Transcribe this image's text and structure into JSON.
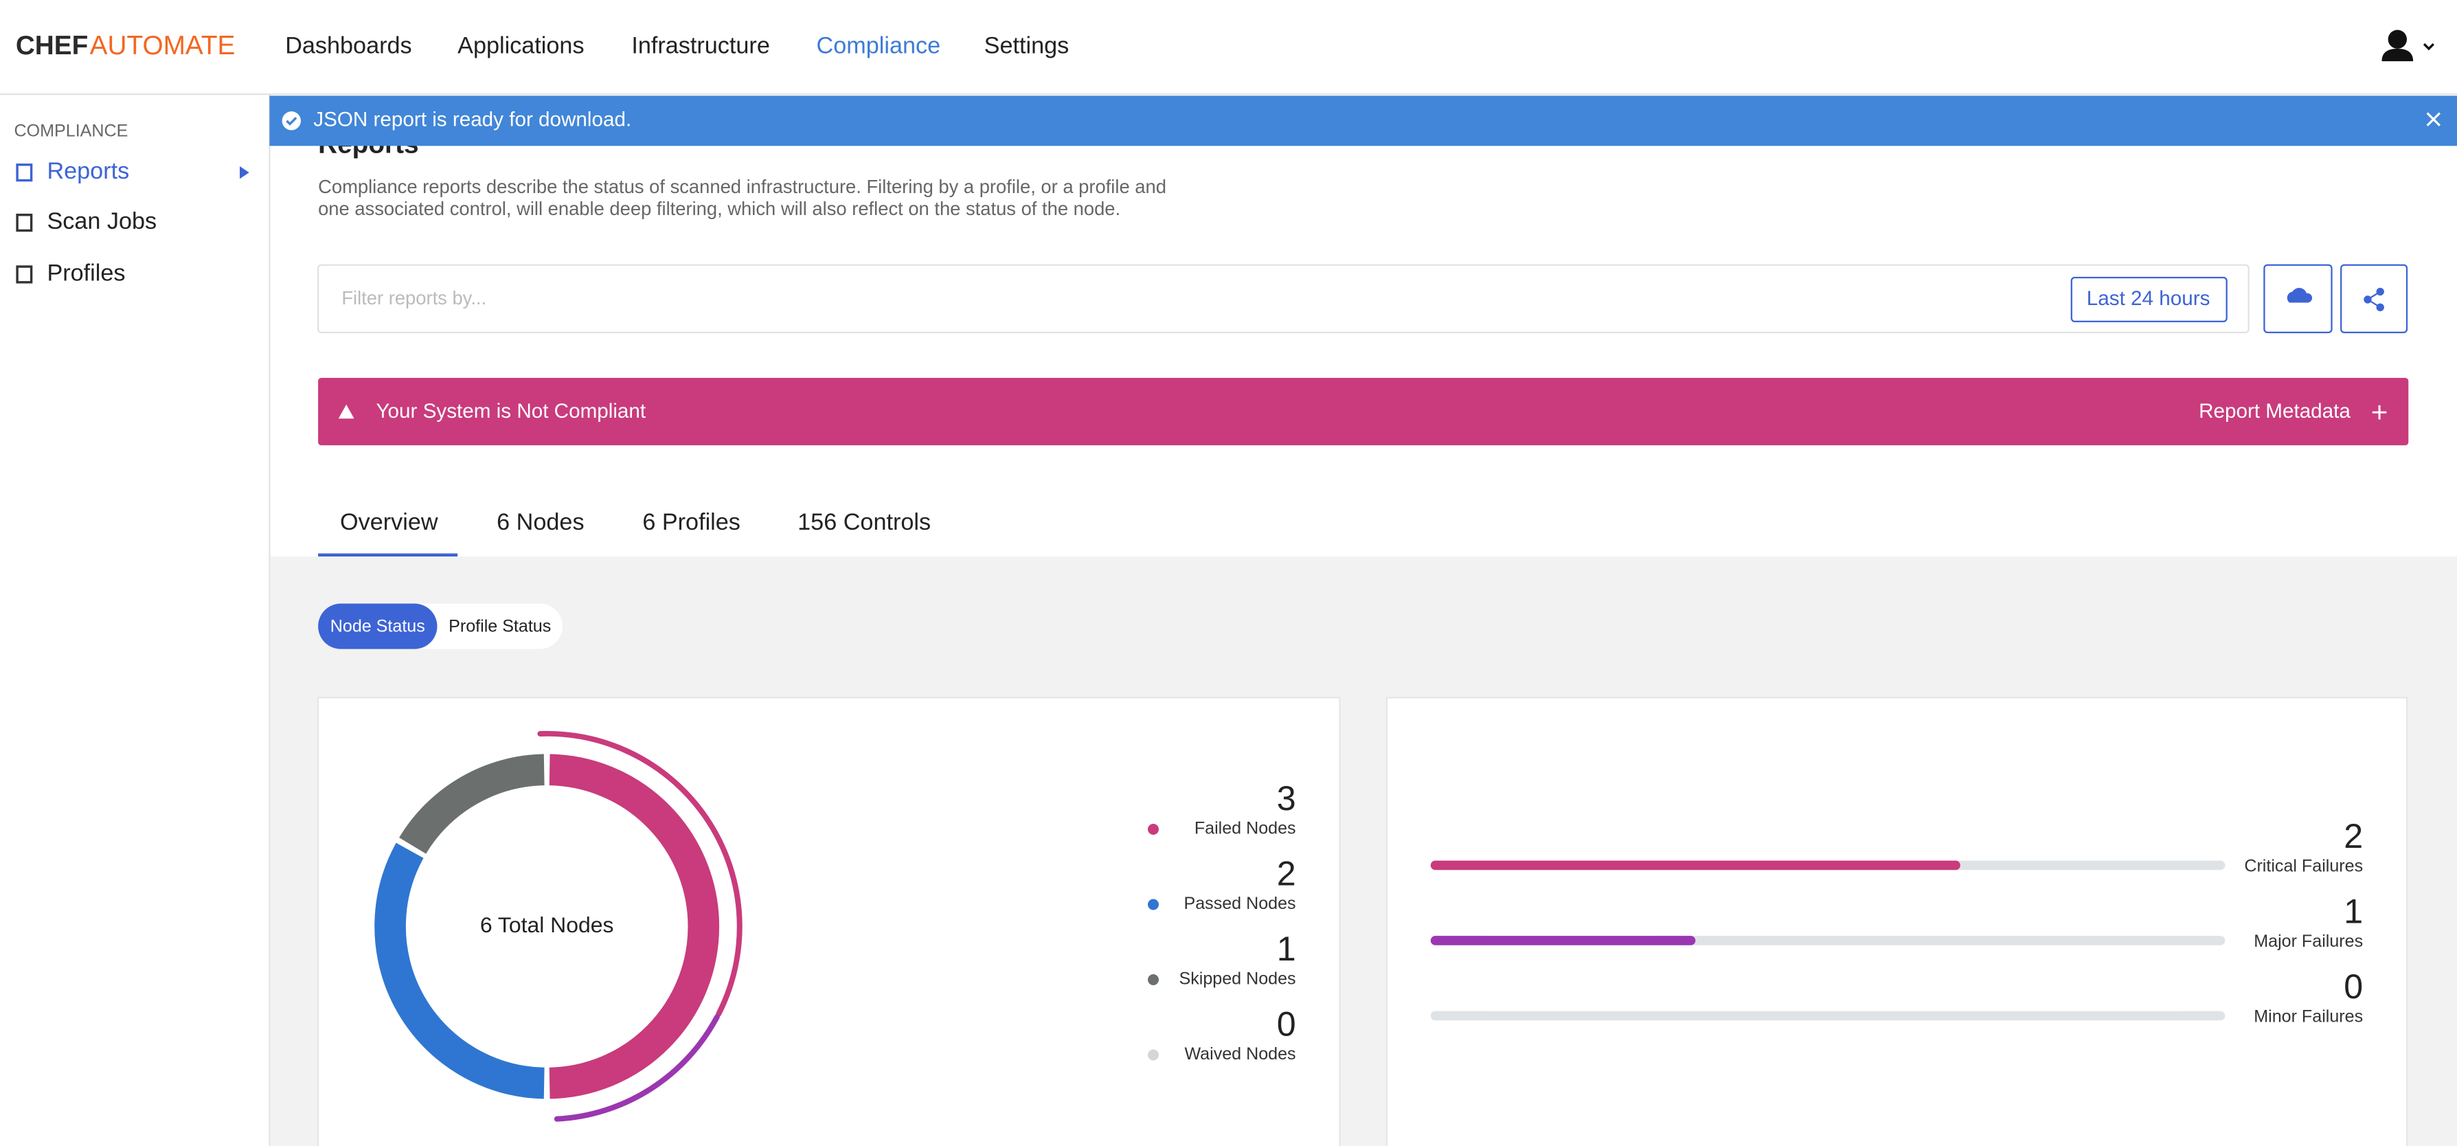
{
  "nav": {
    "logo_bold": "CHEF",
    "logo_light": "AUTOMATE",
    "items": [
      "Dashboards",
      "Applications",
      "Infrastructure",
      "Compliance",
      "Settings"
    ]
  },
  "sidebar": {
    "section": "COMPLIANCE",
    "items": [
      "Reports",
      "Scan Jobs",
      "Profiles"
    ]
  },
  "notification": "JSON report is ready for download.",
  "page": {
    "title": "Reports",
    "description_lines": [
      "Compliance reports describe the status of scanned infrastructure. Filtering by a profile, or a profile and",
      "one associated control, will enable deep filtering, which will also reflect on the status of the node."
    ],
    "filter_placeholder": "Filter reports by...",
    "time_range": "Last 24 hours"
  },
  "status_banner": {
    "text": "Your System is Not Compliant",
    "action": "Report Metadata"
  },
  "tabs": [
    "Overview",
    "6 Nodes",
    "6 Profiles",
    "156 Controls"
  ],
  "toggle": [
    "Node Status",
    "Profile Status"
  ],
  "node_status": {
    "center_label": "6 Total Nodes",
    "items": [
      {
        "label": "Failed Nodes",
        "value": 3,
        "color": "#c93b7c"
      },
      {
        "label": "Passed Nodes",
        "value": 2,
        "color": "#2f76d2"
      },
      {
        "label": "Skipped Nodes",
        "value": 1,
        "color": "#6b706f"
      },
      {
        "label": "Waived Nodes",
        "value": 0,
        "color": "#d4d6d8"
      }
    ]
  },
  "failures": {
    "items": [
      {
        "label": "Critical Failures",
        "value": 2,
        "color": "#c93b7c"
      },
      {
        "label": "Major Failures",
        "value": 1,
        "color": "#9a37b0"
      },
      {
        "label": "Minor Failures",
        "value": 0,
        "color": "#e0c030"
      }
    ]
  }
}
